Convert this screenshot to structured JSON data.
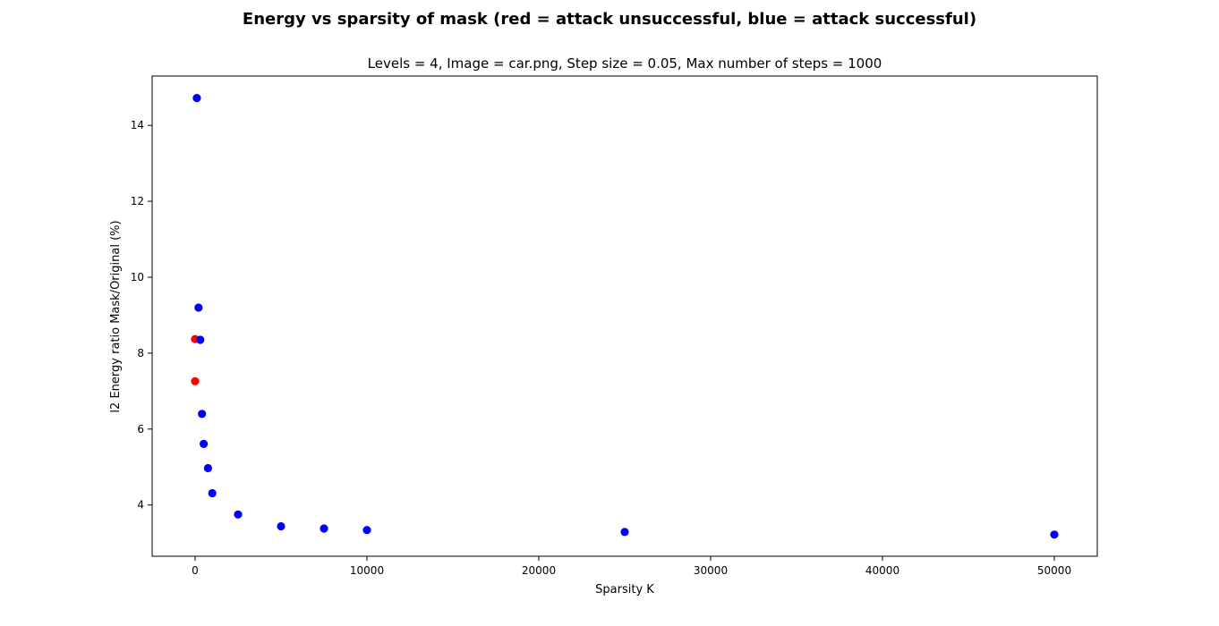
{
  "figure": {
    "suptitle": "Energy vs sparsity of mask (red = attack unsuccessful, blue = attack successful)"
  },
  "chart_data": {
    "type": "scatter",
    "title": "Levels = 4, Image = car.png, Step size = 0.05, Max number of steps = 1000",
    "xlabel": "Sparsity K",
    "ylabel": "l2 Energy ratio Mask/Original (%)",
    "xlim": [
      -2500,
      52500
    ],
    "ylim": [
      2.65,
      15.3
    ],
    "xticks": [
      0,
      10000,
      20000,
      30000,
      40000,
      50000
    ],
    "yticks": [
      4,
      6,
      8,
      10,
      12,
      14
    ],
    "grid": false,
    "colors": {
      "successful": "#0000ff",
      "unsuccessful": "#ff0000"
    },
    "series": [
      {
        "color": "#ff0000",
        "points": [
          {
            "x": 0,
            "y": 8.37
          },
          {
            "x": 0,
            "y": 7.26
          }
        ]
      },
      {
        "color": "#0000ff",
        "points": [
          {
            "x": 100,
            "y": 14.72
          },
          {
            "x": 200,
            "y": 9.2
          },
          {
            "x": 300,
            "y": 8.35
          },
          {
            "x": 400,
            "y": 6.4
          },
          {
            "x": 500,
            "y": 5.61
          },
          {
            "x": 750,
            "y": 4.97
          },
          {
            "x": 1000,
            "y": 4.31
          },
          {
            "x": 2500,
            "y": 3.75
          },
          {
            "x": 5000,
            "y": 3.44
          },
          {
            "x": 7500,
            "y": 3.38
          },
          {
            "x": 10000,
            "y": 3.34
          },
          {
            "x": 25000,
            "y": 3.29
          },
          {
            "x": 50000,
            "y": 3.22
          }
        ]
      }
    ]
  }
}
